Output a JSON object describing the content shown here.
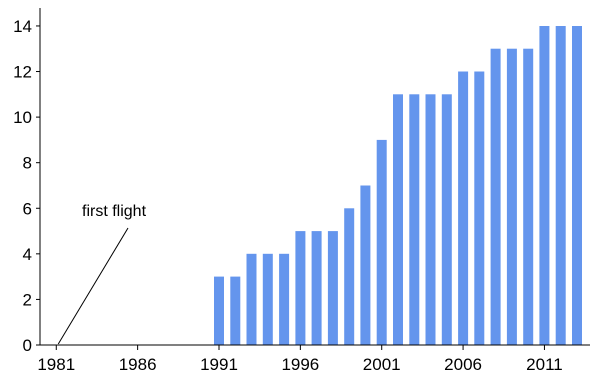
{
  "chart_data": {
    "type": "bar",
    "title": "",
    "xlabel": "",
    "ylabel": "",
    "x": [
      1981,
      1982,
      1983,
      1984,
      1985,
      1986,
      1987,
      1988,
      1989,
      1990,
      1991,
      1992,
      1993,
      1994,
      1995,
      1996,
      1997,
      1998,
      1999,
      2000,
      2001,
      2002,
      2003,
      2004,
      2005,
      2006,
      2007,
      2008,
      2009,
      2010,
      2011,
      2012,
      2013
    ],
    "values": [
      0,
      0,
      0,
      0,
      0,
      0,
      0,
      0,
      0,
      0,
      3,
      3,
      4,
      4,
      4,
      5,
      5,
      5,
      6,
      7,
      9,
      11,
      11,
      11,
      11,
      12,
      12,
      13,
      13,
      13,
      14,
      14,
      14
    ],
    "xticks": [
      "1981",
      "1986",
      "1991",
      "1996",
      "2001",
      "2006",
      "2011"
    ],
    "yticks": [
      "0",
      "2",
      "4",
      "6",
      "8",
      "10",
      "12",
      "14"
    ],
    "ylim": [
      0,
      14.7
    ],
    "bar_color": "#6495ed",
    "grid": false,
    "annotation": {
      "text": "first flight",
      "points_to_x": 1981,
      "points_to_y": 0
    }
  }
}
